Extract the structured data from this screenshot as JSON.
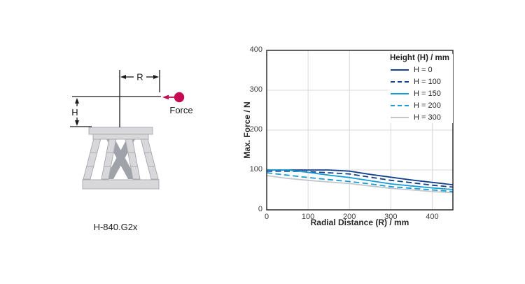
{
  "diagram": {
    "model_label": "H-840.G2x",
    "radius_label": "R",
    "height_label": "H",
    "force_label": "Force",
    "force_color": "#c60a52",
    "body_fill": "#d8d8db",
    "body_stroke": "#abacb3",
    "dark_strut_fill": "#a0a2a9",
    "line_color": "#1a1a1a"
  },
  "chart_data": {
    "type": "line",
    "title": "",
    "xlabel": "Radial Distance (R) / mm",
    "ylabel": "Max. Force / N",
    "xlim": [
      0,
      450
    ],
    "ylim": [
      0,
      400
    ],
    "xticks": [
      0,
      100,
      200,
      300,
      400
    ],
    "yticks": [
      0,
      100,
      200,
      300,
      400
    ],
    "grid": true,
    "grid_color": "#d9d9d9",
    "border_color": "#2d2d2d",
    "legend_title": "Height (H) / mm",
    "legend_position": "top-right",
    "x": [
      0,
      50,
      100,
      150,
      200,
      250,
      300,
      350,
      400,
      450
    ],
    "series": [
      {
        "name": "H = 0",
        "color": "#14418c",
        "style": "solid",
        "values": [
          100,
          100,
          100,
          100,
          97,
          89,
          82,
          75,
          69,
          63
        ]
      },
      {
        "name": "H = 100",
        "color": "#14418c",
        "style": "dashed",
        "values": [
          97,
          97,
          96,
          93,
          90,
          82,
          74,
          68,
          62,
          57
        ]
      },
      {
        "name": "H = 150",
        "color": "#169bd5",
        "style": "solid",
        "values": [
          100,
          100,
          94,
          87,
          81,
          73,
          65,
          60,
          55,
          51
        ]
      },
      {
        "name": "H = 200",
        "color": "#169bd5",
        "style": "dashed",
        "values": [
          93,
          87,
          81,
          76,
          71,
          65,
          58,
          54,
          50,
          46
        ]
      },
      {
        "name": "H = 300",
        "color": "#c3c7cb",
        "style": "solid",
        "values": [
          86,
          79,
          74,
          70,
          66,
          60,
          54,
          50,
          46,
          43
        ]
      }
    ]
  }
}
